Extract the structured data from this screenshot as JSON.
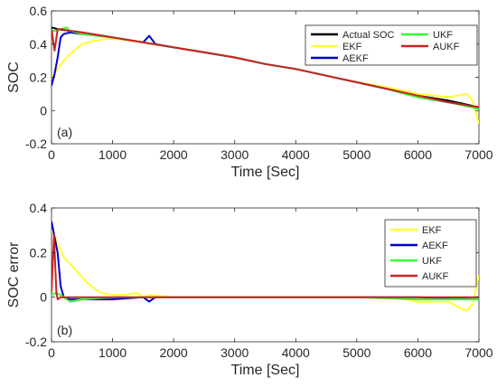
{
  "chart_data": [
    {
      "type": "line",
      "panel_label": "(a)",
      "xlabel": "Time [Sec]",
      "ylabel": "SOC",
      "xlim": [
        0,
        7000
      ],
      "ylim": [
        -0.2,
        0.6
      ],
      "xticks": [
        "0",
        "1000",
        "2000",
        "3000",
        "4000",
        "5000",
        "6000",
        "7000"
      ],
      "yticks": [
        "-0.2",
        "0",
        "0.2",
        "0.4",
        "0.6"
      ],
      "grid": false,
      "legend_position": "top-right",
      "legend_columns": 2,
      "series": [
        {
          "name": "Actual SOC",
          "color": "#000000",
          "x": [
            0,
            100,
            500,
            1000,
            1500,
            2000,
            2500,
            3000,
            3500,
            4000,
            4500,
            5000,
            5500,
            6000,
            6500,
            7000
          ],
          "y": [
            0.5,
            0.49,
            0.47,
            0.44,
            0.41,
            0.38,
            0.35,
            0.32,
            0.28,
            0.25,
            0.21,
            0.17,
            0.13,
            0.09,
            0.06,
            0.02
          ]
        },
        {
          "name": "EKF",
          "color": "#ffff33",
          "x": [
            0,
            100,
            200,
            300,
            400,
            500,
            700,
            900,
            1100,
            1300,
            1500,
            2000,
            2500,
            3000,
            3500,
            4000,
            4500,
            5000,
            5500,
            6000,
            6500,
            6800,
            6900,
            7000
          ],
          "y": [
            0.2,
            0.25,
            0.3,
            0.34,
            0.37,
            0.4,
            0.42,
            0.43,
            0.43,
            0.42,
            0.41,
            0.38,
            0.35,
            0.32,
            0.28,
            0.25,
            0.21,
            0.17,
            0.14,
            0.1,
            0.08,
            0.1,
            0.06,
            -0.08
          ]
        },
        {
          "name": "AEKF",
          "color": "#0000cc",
          "x": [
            0,
            50,
            100,
            150,
            200,
            300,
            500,
            1000,
            1500,
            1600,
            1700,
            2000,
            2500,
            3000,
            3500,
            4000,
            4500,
            5000,
            5500,
            6000,
            6500,
            7000
          ],
          "y": [
            0.15,
            0.22,
            0.32,
            0.44,
            0.46,
            0.47,
            0.46,
            0.44,
            0.41,
            0.45,
            0.4,
            0.38,
            0.35,
            0.32,
            0.28,
            0.25,
            0.21,
            0.17,
            0.13,
            0.08,
            0.05,
            0.02
          ]
        },
        {
          "name": "UKF",
          "color": "#33ff33",
          "x": [
            0,
            80,
            150,
            250,
            300,
            500,
            1000,
            1500,
            2000,
            2500,
            3000,
            3500,
            4000,
            4500,
            5000,
            5500,
            6000,
            6500,
            7000
          ],
          "y": [
            0.48,
            0.48,
            0.49,
            0.5,
            0.48,
            0.46,
            0.44,
            0.41,
            0.38,
            0.35,
            0.32,
            0.28,
            0.25,
            0.21,
            0.17,
            0.13,
            0.08,
            0.05,
            0.01
          ]
        },
        {
          "name": "AUKF",
          "color": "#cc2222",
          "x": [
            0,
            50,
            100,
            150,
            300,
            500,
            1000,
            1500,
            2000,
            2500,
            3000,
            3500,
            4000,
            4500,
            5000,
            5500,
            6000,
            6500,
            7000
          ],
          "y": [
            0.49,
            0.36,
            0.49,
            0.49,
            0.48,
            0.47,
            0.44,
            0.41,
            0.38,
            0.35,
            0.32,
            0.28,
            0.25,
            0.21,
            0.17,
            0.13,
            0.09,
            0.05,
            0.02
          ]
        }
      ]
    },
    {
      "type": "line",
      "panel_label": "(b)",
      "xlabel": "Time [Sec]",
      "ylabel": "SOC error",
      "xlim": [
        0,
        7000
      ],
      "ylim": [
        -0.2,
        0.4
      ],
      "xticks": [
        "0",
        "1000",
        "2000",
        "3000",
        "4000",
        "5000",
        "6000",
        "7000"
      ],
      "yticks": [
        "-0.2",
        "0",
        "0.2",
        "0.4"
      ],
      "grid": false,
      "legend_position": "top-right",
      "legend_columns": 1,
      "series": [
        {
          "name": "EKF",
          "color": "#ffff33",
          "x": [
            0,
            100,
            200,
            300,
            400,
            500,
            600,
            800,
            1000,
            1200,
            1400,
            1500,
            1600,
            2000,
            3000,
            4000,
            5000,
            5600,
            6000,
            6500,
            6700,
            6800,
            6900,
            7000
          ],
          "y": [
            0.3,
            0.24,
            0.18,
            0.15,
            0.12,
            0.09,
            0.06,
            0.02,
            0.01,
            0.01,
            0.02,
            0.0,
            0.01,
            0.0,
            0.0,
            0.0,
            0.0,
            0.0,
            -0.02,
            -0.02,
            -0.05,
            -0.06,
            -0.03,
            0.1
          ]
        },
        {
          "name": "AEKF",
          "color": "#0000cc",
          "x": [
            0,
            50,
            100,
            150,
            200,
            300,
            500,
            1000,
            1500,
            1600,
            1700,
            2000,
            3000,
            4000,
            5000,
            6000,
            7000
          ],
          "y": [
            0.34,
            0.27,
            0.2,
            0.05,
            0.0,
            -0.01,
            -0.01,
            -0.01,
            0.0,
            -0.02,
            0.0,
            0.0,
            0.0,
            0.0,
            0.0,
            0.0,
            -0.01
          ]
        },
        {
          "name": "UKF",
          "color": "#33ff33",
          "x": [
            0,
            80,
            150,
            300,
            500,
            1000,
            2000,
            3000,
            4000,
            5000,
            6000,
            7000
          ],
          "y": [
            0.01,
            0.02,
            0.01,
            -0.02,
            -0.01,
            0.0,
            0.0,
            0.0,
            0.0,
            0.0,
            -0.01,
            -0.01
          ]
        },
        {
          "name": "AUKF",
          "color": "#cc2222",
          "x": [
            0,
            40,
            80,
            100,
            150,
            300,
            1000,
            2000,
            3000,
            4000,
            5000,
            6000,
            7000
          ],
          "y": [
            0.02,
            0.28,
            0.02,
            -0.01,
            0.0,
            0.0,
            0.0,
            0.0,
            0.0,
            0.0,
            0.0,
            0.0,
            0.0
          ]
        }
      ]
    }
  ]
}
